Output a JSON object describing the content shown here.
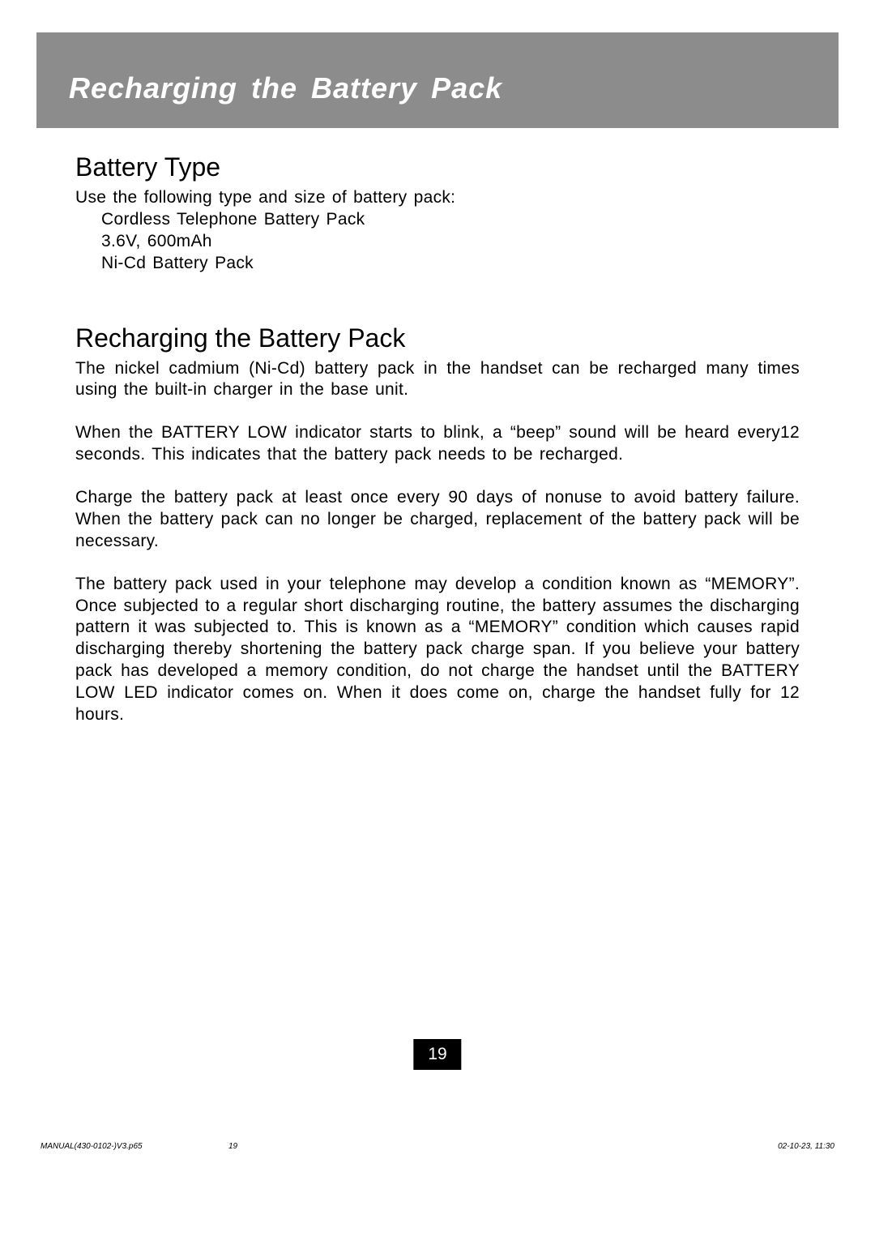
{
  "colors": {
    "header_bg": "#8c8c8c",
    "header_text": "#ffffff",
    "body_text": "#000000",
    "page_bg": "#ffffff",
    "page_number_bg": "#000000",
    "page_number_text": "#ffffff"
  },
  "typography": {
    "header_title_fontsize": 36,
    "section_heading_fontsize": 32,
    "body_fontsize": 21,
    "footer_fontsize": 10
  },
  "header": {
    "title": "Recharging the Battery Pack"
  },
  "section1": {
    "heading": "Battery Type",
    "intro": "Use the following type and size of battery pack:",
    "line1": "Cordless Telephone Battery Pack",
    "line2": "3.6V, 600mAh",
    "line3": "Ni-Cd Battery Pack"
  },
  "section2": {
    "heading": "Recharging the Battery Pack",
    "p1": "The nickel cadmium (Ni-Cd) battery pack in the handset can be recharged many times using the built-in charger in the base unit.",
    "p2": "When the BATTERY LOW indicator starts to blink, a “beep” sound will be heard every12 seconds. This indicates that the battery pack needs to be recharged.",
    "p3": "Charge the battery pack at least once every 90 days of nonuse to avoid battery failure. When the battery pack can no longer be charged, replacement of the battery pack will be necessary.",
    "p4": "The battery pack used in your telephone may develop a condition known as “MEMORY”. Once subjected to a regular short discharging routine, the battery assumes the discharging pattern it was subjected to. This is known as a  “MEMORY” condition which causes rapid discharging thereby shortening the battery pack charge span. If you believe your battery pack has developed a memory condition, do not charge the handset until the BATTERY LOW LED indicator comes on. When it does come on, charge the handset fully for 12 hours."
  },
  "page_number": "19",
  "footer": {
    "left": "MANUAL(430-0102-)V3.p65",
    "mid": "19",
    "right": "02-10-23, 11:30"
  }
}
